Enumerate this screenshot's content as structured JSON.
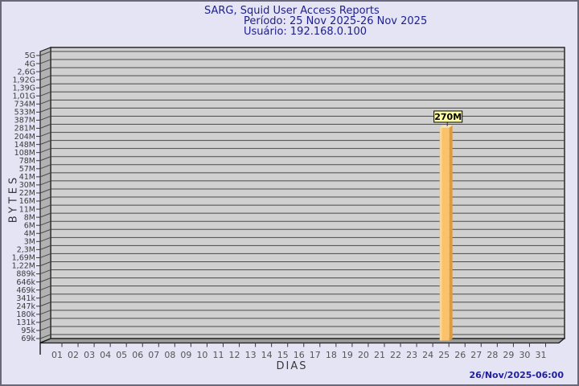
{
  "header": {
    "title": "SARG, Squid User Access Reports",
    "period_label": "Período: 25 Nov 2025-26 Nov 2025",
    "user_label": "Usuário: 192.168.0.100"
  },
  "footer": {
    "timestamp": "26/Nov/2025-06:00"
  },
  "colors": {
    "page_bg": "#e4e4f4",
    "page_border": "#68687a",
    "title_text": "#20208c",
    "timestamp_text": "#2020a0",
    "plot_bg": "#d0d0d0",
    "wall_fill": "#b2b2b2",
    "floor_fill": "#9a9a9a",
    "gridline": "#4a4a4a",
    "plot_edge": "#1c1c1c",
    "tick": "#3a3a3a",
    "y_label_text": "#3a3a3a",
    "x_label_text": "#555555",
    "bar_front": "#fcc269",
    "bar_highlight": "#fdd893",
    "bar_side": "#de9b3e",
    "bar_top": "#fbe3ad",
    "value_box_bg": "#ffffa2",
    "value_box_border": "#000000",
    "value_text": "#000000"
  },
  "chart_data": {
    "type": "bar",
    "title": "SARG, Squid User Access Reports",
    "subtitle": [
      "Período: 25 Nov 2025-26 Nov 2025",
      "Usuário: 192.168.0.100"
    ],
    "xlabel": "DIAS",
    "ylabel": "BYTES",
    "y_scale": "log",
    "grid": true,
    "legend": "none",
    "y_axis_top_value": 5000000000,
    "y_axis_bottom_value": 69000,
    "y_tick_labels": [
      "5G",
      "4G",
      "2,6G",
      "1,92G",
      "1,39G",
      "1,01G",
      "734M",
      "533M",
      "387M",
      "281M",
      "204M",
      "148M",
      "108M",
      "78M",
      "57M",
      "41M",
      "30M",
      "22M",
      "16M",
      "11M",
      "8M",
      "6M",
      "4M",
      "3M",
      "2,3M",
      "1,69M",
      "1,22M",
      "889k",
      "646k",
      "469k",
      "341k",
      "247k",
      "180k",
      "131k",
      "95k",
      "69k"
    ],
    "x_tick_labels": [
      "01",
      "02",
      "03",
      "04",
      "05",
      "06",
      "07",
      "08",
      "09",
      "10",
      "11",
      "12",
      "13",
      "14",
      "15",
      "16",
      "17",
      "18",
      "19",
      "20",
      "21",
      "22",
      "23",
      "24",
      "25",
      "26",
      "27",
      "28",
      "29",
      "30",
      "31"
    ],
    "bars": [
      {
        "day": "25",
        "value": 270000000,
        "label": "270M"
      }
    ]
  }
}
